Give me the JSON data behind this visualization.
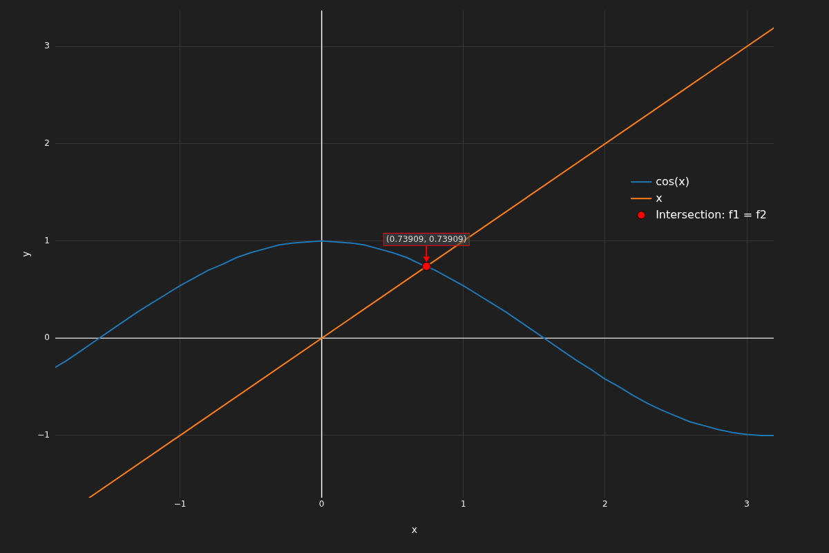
{
  "chart_data": {
    "type": "line",
    "xlabel": "x",
    "ylabel": "y",
    "xlim": [
      -1.88,
      3.19
    ],
    "ylim": [
      -1.64,
      3.37
    ],
    "xticks": [
      {
        "value": -1,
        "label": "−1"
      },
      0,
      1,
      2,
      3
    ],
    "yticks": [
      {
        "value": -1,
        "label": "−1"
      },
      0,
      1,
      2,
      3
    ],
    "grid": true,
    "legend": "top right",
    "ref_lines": [
      {
        "axis": "x",
        "value": 0,
        "color": "#ffffff"
      },
      {
        "axis": "y",
        "value": 0,
        "color": "#cccccc"
      }
    ],
    "series": [
      {
        "name": "cos(x)",
        "color": "#1f77b4",
        "x": [
          -1.88,
          -1.8,
          -1.7,
          -1.6,
          -1.5,
          -1.4,
          -1.3,
          -1.2,
          -1.1,
          -1.0,
          -0.9,
          -0.8,
          -0.7,
          -0.6,
          -0.5,
          -0.4,
          -0.3,
          -0.2,
          -0.1,
          0,
          0.1,
          0.2,
          0.3,
          0.4,
          0.5,
          0.6,
          0.7,
          0.8,
          0.9,
          1.0,
          1.1,
          1.2,
          1.3,
          1.4,
          1.5,
          1.6,
          1.7,
          1.8,
          1.9,
          2.0,
          2.1,
          2.2,
          2.3,
          2.4,
          2.5,
          2.6,
          2.7,
          2.8,
          2.9,
          3.0,
          3.1,
          3.19
        ],
        "values": [
          -0.3,
          -0.23,
          -0.13,
          -0.03,
          0.07,
          0.17,
          0.27,
          0.36,
          0.45,
          0.54,
          0.62,
          0.7,
          0.76,
          0.83,
          0.88,
          0.92,
          0.96,
          0.98,
          0.99,
          1,
          0.99,
          0.98,
          0.96,
          0.92,
          0.88,
          0.83,
          0.76,
          0.7,
          0.62,
          0.54,
          0.45,
          0.36,
          0.27,
          0.17,
          0.07,
          -0.03,
          -0.13,
          -0.23,
          -0.32,
          -0.42,
          -0.5,
          -0.59,
          -0.67,
          -0.74,
          -0.8,
          -0.86,
          -0.9,
          -0.94,
          -0.97,
          -0.99,
          -1.0,
          -1.0
        ]
      },
      {
        "name": "x",
        "color": "#ff7f0e",
        "x": [
          -1.64,
          3.19
        ],
        "values": [
          -1.64,
          3.19
        ]
      },
      {
        "name": "Intersection: f1 = f2",
        "type": "scatter",
        "marker": "circle",
        "color": "#ff0000",
        "x": [
          0.73909
        ],
        "values": [
          0.73909
        ]
      }
    ],
    "annotations": [
      {
        "text": "(0.73909, 0.73909)",
        "x": 0.73909,
        "y": 0.73909
      }
    ]
  }
}
